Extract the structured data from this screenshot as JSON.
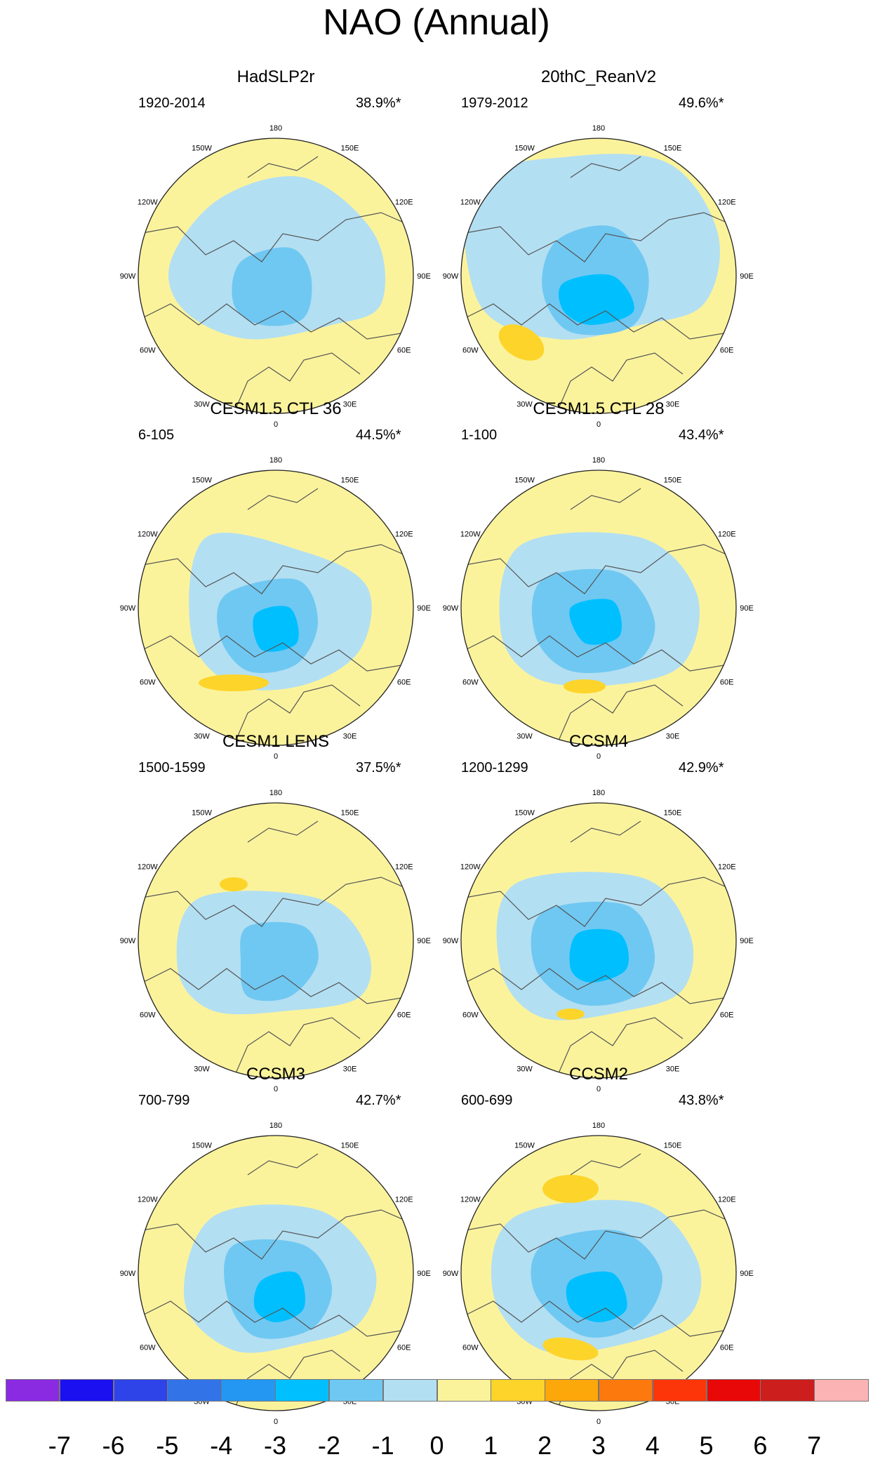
{
  "title": "NAO (Annual)",
  "lon_labels": [
    "180",
    "150E",
    "120E",
    "90E",
    "60E",
    "30E",
    "0",
    "30W",
    "60W",
    "90W",
    "120W",
    "150W"
  ],
  "panels": [
    {
      "name": "HadSLP2r",
      "period": "1920-2014",
      "variance": "38.9%*"
    },
    {
      "name": "20thC_ReanV2",
      "period": "1979-2012",
      "variance": "49.6%*"
    },
    {
      "name": "CESM1.5 CTL 36",
      "period": "6-105",
      "variance": "44.5%*"
    },
    {
      "name": "CESM1.5 CTL 28",
      "period": "1-100",
      "variance": "43.4%*"
    },
    {
      "name": "CESM1 LENS",
      "period": "1500-1599",
      "variance": "37.5%*"
    },
    {
      "name": "CCSM4",
      "period": "1200-1299",
      "variance": "42.9%*"
    },
    {
      "name": "CCSM3",
      "period": "700-799",
      "variance": "42.7%*"
    },
    {
      "name": "CCSM2",
      "period": "600-699",
      "variance": "43.8%*"
    }
  ],
  "colorbar": {
    "labels": [
      "-7",
      "-6",
      "-5",
      "-4",
      "-3",
      "-2",
      "-1",
      "0",
      "1",
      "2",
      "3",
      "4",
      "5",
      "6",
      "7"
    ],
    "colors": [
      "#8a2be2",
      "#1a10f0",
      "#2e44e8",
      "#3373e8",
      "#2497f2",
      "#00bfff",
      "#6fc8f2",
      "#b3dff2",
      "#fbf39c",
      "#fdd42a",
      "#fca70a",
      "#fc7a0d",
      "#fc3608",
      "#e80808",
      "#cd1e1e",
      "#fcb3b3"
    ]
  },
  "map_colors": {
    "land_bg": "#fbf39c",
    "neg1": "#b3dff2",
    "neg2": "#6fc8f2",
    "neg3": "#4aacec",
    "neg4": "#00bfff",
    "pos1": "#fdd42a",
    "coast": "#555555"
  }
}
